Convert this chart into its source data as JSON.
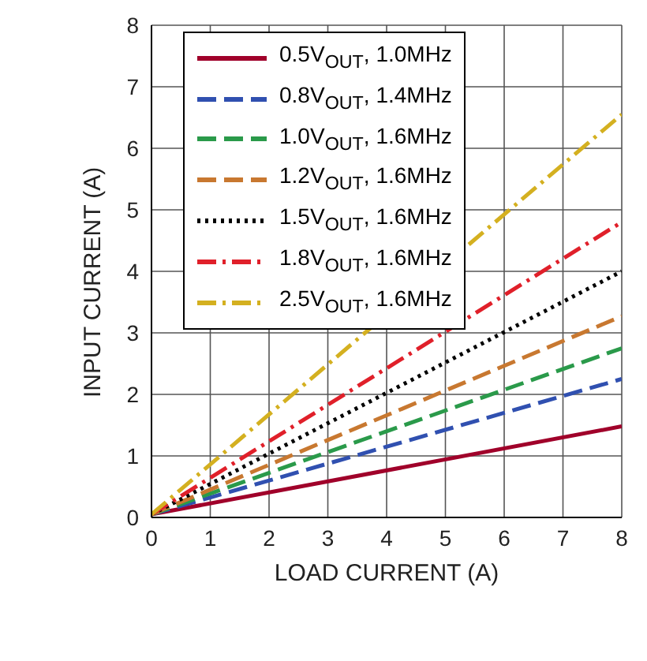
{
  "chart_data": {
    "type": "line",
    "xlabel": "LOAD CURRENT (A)",
    "ylabel": "INPUT CURRENT (A)",
    "x": [
      0,
      8
    ],
    "xlim": [
      0,
      8
    ],
    "xticks": [
      0,
      1,
      2,
      3,
      4,
      5,
      6,
      7,
      8
    ],
    "ylim": [
      0,
      8
    ],
    "yticks": [
      0,
      1,
      2,
      3,
      4,
      5,
      6,
      7,
      8
    ],
    "grid": true,
    "legend": "top left",
    "marker": "none",
    "series": [
      {
        "name": "0.5V$_{OUT}$, 1.0MHz",
        "color": "#a0002a",
        "line_style": "solid",
        "values": [
          0.05,
          1.48
        ]
      },
      {
        "name": "0.8V$_{OUT}$, 1.4MHz",
        "color": "#3050b0",
        "line_style": "dashed",
        "values": [
          0.05,
          2.25
        ]
      },
      {
        "name": "1.0V$_{OUT}$, 1.6MHz",
        "color": "#2a9a4a",
        "line_style": "dashed",
        "values": [
          0.05,
          2.75
        ]
      },
      {
        "name": "1.2V$_{OUT}$, 1.6MHz",
        "color": "#c87830",
        "line_style": "dashed",
        "values": [
          0.05,
          3.27
        ]
      },
      {
        "name": "1.5V$_{OUT}$, 1.6MHz",
        "color": "#000000",
        "line_style": "dotted",
        "values": [
          0.05,
          4.0
        ]
      },
      {
        "name": "1.8V$_{OUT}$, 1.6MHz",
        "color": "#e0202a",
        "line_style": "dashdot",
        "values": [
          0.05,
          4.8
        ]
      },
      {
        "name": "2.5V$_{OUT}$, 1.6MHz",
        "color": "#d4b020",
        "line_style": "dashdot",
        "values": [
          0.05,
          6.55
        ]
      }
    ]
  }
}
